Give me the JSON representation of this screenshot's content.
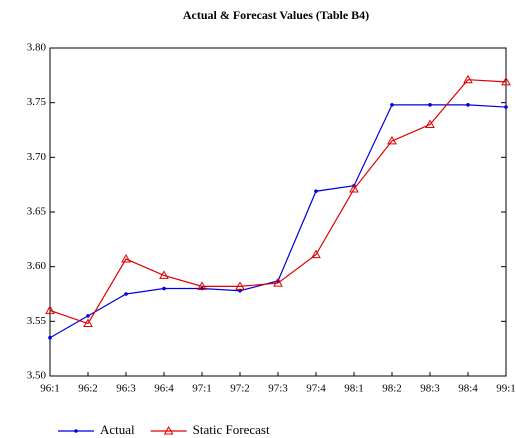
{
  "chart_data": {
    "type": "line",
    "title": "Actual & Forecast Values (Table B4)",
    "categories": [
      "96:1",
      "96:2",
      "96:3",
      "96:4",
      "97:1",
      "97:2",
      "97:3",
      "97:4",
      "98:1",
      "98:2",
      "98:3",
      "98:4",
      "99:1"
    ],
    "series": [
      {
        "name": "Actual",
        "color": "#0000dd",
        "marker": "dot",
        "values": [
          3.535,
          3.555,
          3.575,
          3.58,
          3.58,
          3.578,
          3.587,
          3.669,
          3.674,
          3.748,
          3.748,
          3.748,
          3.746
        ]
      },
      {
        "name": "Static Forecast",
        "color": "#dd0000",
        "marker": "triangle",
        "values": [
          3.56,
          3.548,
          3.607,
          3.592,
          3.582,
          3.582,
          3.585,
          3.611,
          3.671,
          3.715,
          3.73,
          3.771,
          3.769
        ]
      }
    ],
    "ylim": [
      3.5,
      3.8
    ],
    "yticks": [
      {
        "value": 3.5,
        "label": "3.50"
      },
      3.55,
      {
        "value": 3.6,
        "label": "3.60"
      },
      3.65,
      {
        "value": 3.7,
        "label": "3.70"
      },
      3.75,
      {
        "value": 3.8,
        "label": "3.80"
      }
    ],
    "grid": false,
    "legend": "bottom"
  }
}
